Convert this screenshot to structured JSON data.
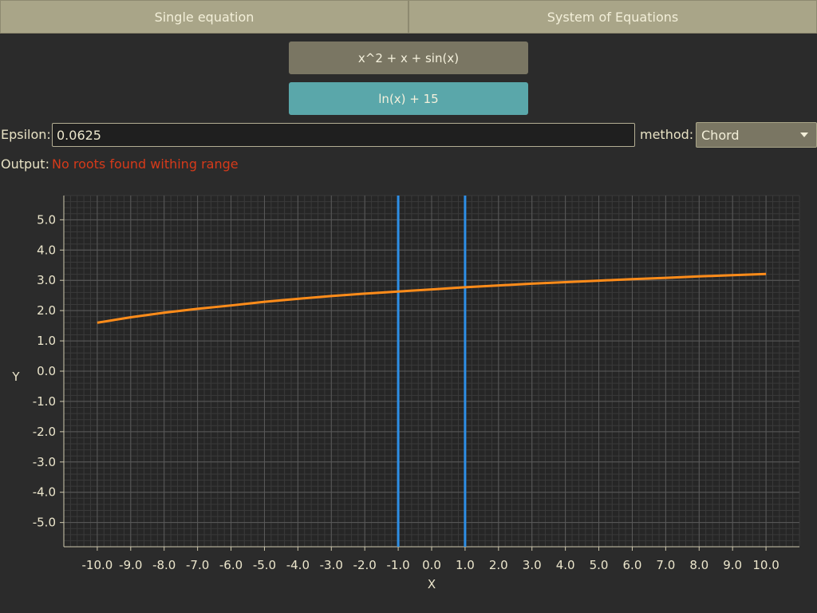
{
  "tabs": [
    {
      "label": "Single equation"
    },
    {
      "label": "System of Equations"
    }
  ],
  "equations": [
    {
      "label": "x^2 + x + sin(x)",
      "selected": false
    },
    {
      "label": "ln(x) + 15",
      "selected": true
    }
  ],
  "epsilon": {
    "label": "Epsilon:",
    "value": "0.0625"
  },
  "method": {
    "label": "method:",
    "value": "Chord"
  },
  "output": {
    "label": "Output:",
    "value": "No roots found withing range"
  },
  "colors": {
    "accent": "#5aa7aa",
    "curve": "#ff8c1a",
    "range_lines": "#2e8fe6",
    "error": "#d63a1a"
  },
  "chart_data": {
    "type": "line",
    "xlabel": "X",
    "ylabel": "Y",
    "xlim": [
      -11.0,
      11.0
    ],
    "ylim": [
      -5.8,
      5.8
    ],
    "xticks": [
      "-10.0",
      "-9.0",
      "-8.0",
      "-7.0",
      "-6.0",
      "-5.0",
      "-4.0",
      "-3.0",
      "-2.0",
      "-1.0",
      "0.0",
      "1.0",
      "2.0",
      "3.0",
      "4.0",
      "5.0",
      "6.0",
      "7.0",
      "8.0",
      "9.0",
      "10.0"
    ],
    "yticks": [
      "5.0",
      "4.0",
      "3.0",
      "2.0",
      "1.0",
      "0.0",
      "-1.0",
      "-2.0",
      "-3.0",
      "-4.0",
      "-5.0"
    ],
    "grid": true,
    "series": [
      {
        "color": "#ff8c1a",
        "x": [
          -10.0,
          -9.0,
          -8.0,
          -7.0,
          -6.0,
          -5.0,
          -4.0,
          -3.0,
          -2.0,
          -1.0,
          0.0,
          1.0,
          2.0,
          3.0,
          4.0,
          5.0,
          6.0,
          7.0,
          8.0,
          9.0,
          10.0
        ],
        "y": [
          1.6,
          1.78,
          1.93,
          2.06,
          2.17,
          2.29,
          2.39,
          2.48,
          2.56,
          2.63,
          2.7,
          2.77,
          2.83,
          2.89,
          2.94,
          2.99,
          3.04,
          3.08,
          3.13,
          3.17,
          3.21
        ]
      }
    ],
    "vlines": [
      {
        "x": -1.0,
        "color": "#2e8fe6"
      },
      {
        "x": 1.0,
        "color": "#2e8fe6"
      }
    ]
  }
}
